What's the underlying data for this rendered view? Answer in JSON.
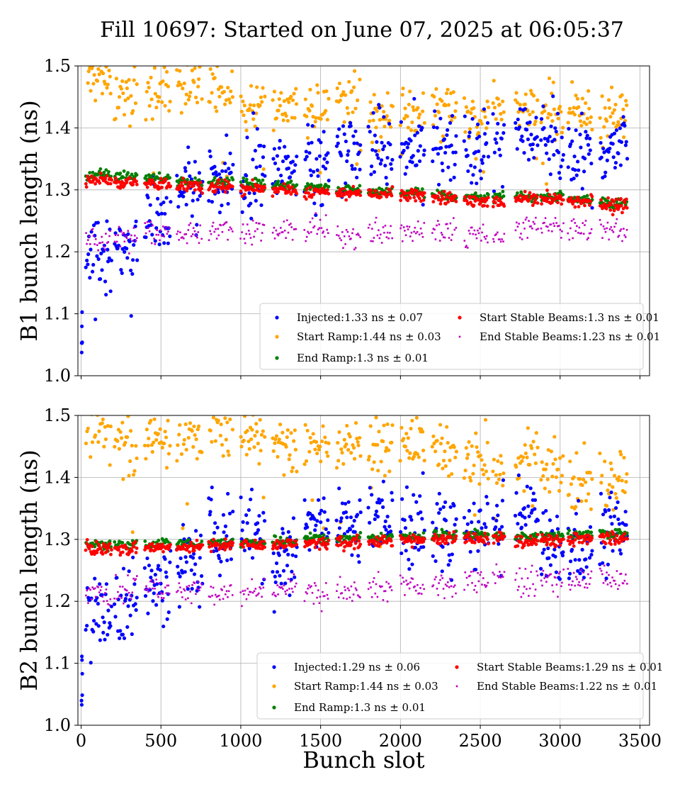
{
  "title": "Fill 10697: Started on June 07, 2025 at 06:05:37",
  "chart_data": [
    {
      "type": "scatter",
      "xlabel": "",
      "ylabel": "B1 bunch length (ns)",
      "xlim": [
        -20,
        3560
      ],
      "ylim": [
        1.0,
        1.5
      ],
      "xticks": [
        0,
        500,
        1000,
        1500,
        2000,
        2500,
        3000,
        3500
      ],
      "yticks": [
        1.0,
        1.1,
        1.2,
        1.3,
        1.4,
        1.5
      ],
      "grid": true,
      "legend_position": "lower-right",
      "series": [
        {
          "name": "Injected",
          "legend": "Injected:1.33 ns ± 0.07",
          "mean": 1.33,
          "std": 0.07,
          "color": "#0000ff",
          "marker": "dot"
        },
        {
          "name": "Start Ramp",
          "legend": "Start Ramp:1.44 ns ± 0.03",
          "mean": 1.44,
          "std": 0.03,
          "color": "#ffa500",
          "marker": "dot"
        },
        {
          "name": "End Ramp",
          "legend": "End Ramp:1.3 ns ± 0.01",
          "mean": 1.3,
          "std": 0.01,
          "color": "#008000",
          "marker": "dot"
        },
        {
          "name": "Start Stable Beams",
          "legend": "Start Stable Beams:1.3 ns ± 0.01",
          "mean": 1.3,
          "std": 0.01,
          "color": "#ff0000",
          "marker": "dot"
        },
        {
          "name": "End Stable Beams",
          "legend": "End Stable Beams:1.23 ns ± 0.01",
          "mean": 1.23,
          "std": 0.01,
          "color": "#bf00bf",
          "marker": "square"
        }
      ],
      "trains": [
        {
          "x0": 30,
          "x1": 190,
          "injected": 1.19,
          "start_ramp": 1.48,
          "end_ramp": 1.325,
          "start_sb": 1.315,
          "end_sb": 1.22
        },
        {
          "x0": 210,
          "x1": 350,
          "injected": 1.21,
          "start_ramp": 1.46,
          "end_ramp": 1.322,
          "start_sb": 1.313,
          "end_sb": 1.22
        },
        {
          "x0": 400,
          "x1": 560,
          "injected": 1.26,
          "start_ramp": 1.46,
          "end_ramp": 1.318,
          "start_sb": 1.31,
          "end_sb": 1.23
        },
        {
          "x0": 600,
          "x1": 760,
          "injected": 1.29,
          "start_ramp": 1.47,
          "end_ramp": 1.312,
          "start_sb": 1.305,
          "end_sb": 1.23
        },
        {
          "x0": 800,
          "x1": 950,
          "injected": 1.32,
          "start_ramp": 1.46,
          "end_ramp": 1.312,
          "start_sb": 1.305,
          "end_sb": 1.235
        },
        {
          "x0": 1000,
          "x1": 1150,
          "injected": 1.33,
          "start_ramp": 1.44,
          "end_ramp": 1.31,
          "start_sb": 1.302,
          "end_sb": 1.235
        },
        {
          "x0": 1200,
          "x1": 1350,
          "injected": 1.33,
          "start_ramp": 1.44,
          "end_ramp": 1.308,
          "start_sb": 1.3,
          "end_sb": 1.235
        },
        {
          "x0": 1400,
          "x1": 1550,
          "injected": 1.34,
          "start_ramp": 1.43,
          "end_ramp": 1.305,
          "start_sb": 1.297,
          "end_sb": 1.235
        },
        {
          "x0": 1600,
          "x1": 1750,
          "injected": 1.37,
          "start_ramp": 1.45,
          "end_ramp": 1.3,
          "start_sb": 1.295,
          "end_sb": 1.22
        },
        {
          "x0": 1800,
          "x1": 1950,
          "injected": 1.37,
          "start_ramp": 1.43,
          "end_ramp": 1.298,
          "start_sb": 1.293,
          "end_sb": 1.235
        },
        {
          "x0": 2000,
          "x1": 2150,
          "injected": 1.36,
          "start_ramp": 1.42,
          "end_ramp": 1.295,
          "start_sb": 1.29,
          "end_sb": 1.235
        },
        {
          "x0": 2200,
          "x1": 2350,
          "injected": 1.37,
          "start_ramp": 1.43,
          "end_ramp": 1.29,
          "start_sb": 1.287,
          "end_sb": 1.235
        },
        {
          "x0": 2400,
          "x1": 2550,
          "injected": 1.36,
          "start_ramp": 1.42,
          "end_ramp": 1.288,
          "start_sb": 1.283,
          "end_sb": 1.225
        },
        {
          "x0": 2580,
          "x1": 2650,
          "injected": 1.37,
          "start_ramp": 1.43,
          "end_ramp": 1.288,
          "start_sb": 1.28,
          "end_sb": 1.225
        },
        {
          "x0": 2720,
          "x1": 2860,
          "injected": 1.39,
          "start_ramp": 1.43,
          "end_ramp": 1.29,
          "start_sb": 1.287,
          "end_sb": 1.24
        },
        {
          "x0": 2880,
          "x1": 3020,
          "injected": 1.37,
          "start_ramp": 1.42,
          "end_ramp": 1.29,
          "start_sb": 1.285,
          "end_sb": 1.24
        },
        {
          "x0": 3050,
          "x1": 3200,
          "injected": 1.36,
          "start_ramp": 1.43,
          "end_ramp": 1.285,
          "start_sb": 1.282,
          "end_sb": 1.235
        },
        {
          "x0": 3250,
          "x1": 3420,
          "injected": 1.37,
          "start_ramp": 1.42,
          "end_ramp": 1.28,
          "start_sb": 1.275,
          "end_sb": 1.235
        }
      ]
    },
    {
      "type": "scatter",
      "xlabel": "Bunch slot",
      "ylabel": "B2 bunch length (ns)",
      "xlim": [
        -20,
        3560
      ],
      "ylim": [
        1.0,
        1.5
      ],
      "xticks": [
        0,
        500,
        1000,
        1500,
        2000,
        2500,
        3000,
        3500
      ],
      "yticks": [
        1.0,
        1.1,
        1.2,
        1.3,
        1.4,
        1.5
      ],
      "grid": true,
      "legend_position": "lower-right",
      "series": [
        {
          "name": "Injected",
          "legend": "Injected:1.29 ns ± 0.06",
          "mean": 1.29,
          "std": 0.06,
          "color": "#0000ff",
          "marker": "dot"
        },
        {
          "name": "Start Ramp",
          "legend": "Start Ramp:1.44 ns ± 0.03",
          "mean": 1.44,
          "std": 0.03,
          "color": "#ffa500",
          "marker": "dot"
        },
        {
          "name": "End Ramp",
          "legend": "End Ramp:1.3 ns ± 0.01",
          "mean": 1.3,
          "std": 0.01,
          "color": "#008000",
          "marker": "dot"
        },
        {
          "name": "Start Stable Beams",
          "legend": "Start Stable Beams:1.29 ns ± 0.01",
          "mean": 1.29,
          "std": 0.01,
          "color": "#ff0000",
          "marker": "dot"
        },
        {
          "name": "End Stable Beams",
          "legend": "End Stable Beams:1.22 ns ± 0.01",
          "mean": 1.22,
          "std": 0.01,
          "color": "#bf00bf",
          "marker": "square"
        }
      ],
      "trains": [
        {
          "x0": 30,
          "x1": 190,
          "injected": 1.18,
          "start_ramp": 1.48,
          "end_ramp": 1.292,
          "start_sb": 1.285,
          "end_sb": 1.215
        },
        {
          "x0": 210,
          "x1": 350,
          "injected": 1.19,
          "start_ramp": 1.45,
          "end_ramp": 1.292,
          "start_sb": 1.285,
          "end_sb": 1.215
        },
        {
          "x0": 400,
          "x1": 560,
          "injected": 1.24,
          "start_ramp": 1.46,
          "end_ramp": 1.293,
          "start_sb": 1.287,
          "end_sb": 1.22
        },
        {
          "x0": 600,
          "x1": 760,
          "injected": 1.26,
          "start_ramp": 1.46,
          "end_ramp": 1.293,
          "start_sb": 1.287,
          "end_sb": 1.22
        },
        {
          "x0": 800,
          "x1": 950,
          "injected": 1.31,
          "start_ramp": 1.48,
          "end_ramp": 1.295,
          "start_sb": 1.29,
          "end_sb": 1.215
        },
        {
          "x0": 1000,
          "x1": 1150,
          "injected": 1.31,
          "start_ramp": 1.47,
          "end_ramp": 1.295,
          "start_sb": 1.29,
          "end_sb": 1.215
        },
        {
          "x0": 1200,
          "x1": 1350,
          "injected": 1.28,
          "start_ramp": 1.45,
          "end_ramp": 1.297,
          "start_sb": 1.292,
          "end_sb": 1.22
        },
        {
          "x0": 1400,
          "x1": 1550,
          "injected": 1.32,
          "start_ramp": 1.46,
          "end_ramp": 1.3,
          "start_sb": 1.293,
          "end_sb": 1.21
        },
        {
          "x0": 1600,
          "x1": 1750,
          "injected": 1.32,
          "start_ramp": 1.46,
          "end_ramp": 1.302,
          "start_sb": 1.295,
          "end_sb": 1.22
        },
        {
          "x0": 1800,
          "x1": 1950,
          "injected": 1.33,
          "start_ramp": 1.45,
          "end_ramp": 1.303,
          "start_sb": 1.297,
          "end_sb": 1.225
        },
        {
          "x0": 2000,
          "x1": 2150,
          "injected": 1.32,
          "start_ramp": 1.45,
          "end_ramp": 1.305,
          "start_sb": 1.298,
          "end_sb": 1.225
        },
        {
          "x0": 2200,
          "x1": 2350,
          "injected": 1.32,
          "start_ramp": 1.45,
          "end_ramp": 1.307,
          "start_sb": 1.3,
          "end_sb": 1.225
        },
        {
          "x0": 2400,
          "x1": 2550,
          "injected": 1.31,
          "start_ramp": 1.43,
          "end_ramp": 1.308,
          "start_sb": 1.302,
          "end_sb": 1.235
        },
        {
          "x0": 2580,
          "x1": 2650,
          "injected": 1.32,
          "start_ramp": 1.42,
          "end_ramp": 1.308,
          "start_sb": 1.302,
          "end_sb": 1.245
        },
        {
          "x0": 2720,
          "x1": 2860,
          "injected": 1.35,
          "start_ramp": 1.43,
          "end_ramp": 1.303,
          "start_sb": 1.297,
          "end_sb": 1.23
        },
        {
          "x0": 2880,
          "x1": 3020,
          "injected": 1.28,
          "start_ramp": 1.41,
          "end_ramp": 1.305,
          "start_sb": 1.298,
          "end_sb": 1.235
        },
        {
          "x0": 3050,
          "x1": 3200,
          "injected": 1.29,
          "start_ramp": 1.39,
          "end_ramp": 1.307,
          "start_sb": 1.3,
          "end_sb": 1.235
        },
        {
          "x0": 3250,
          "x1": 3420,
          "injected": 1.31,
          "start_ramp": 1.4,
          "end_ramp": 1.31,
          "start_sb": 1.303,
          "end_sb": 1.235
        }
      ]
    }
  ]
}
